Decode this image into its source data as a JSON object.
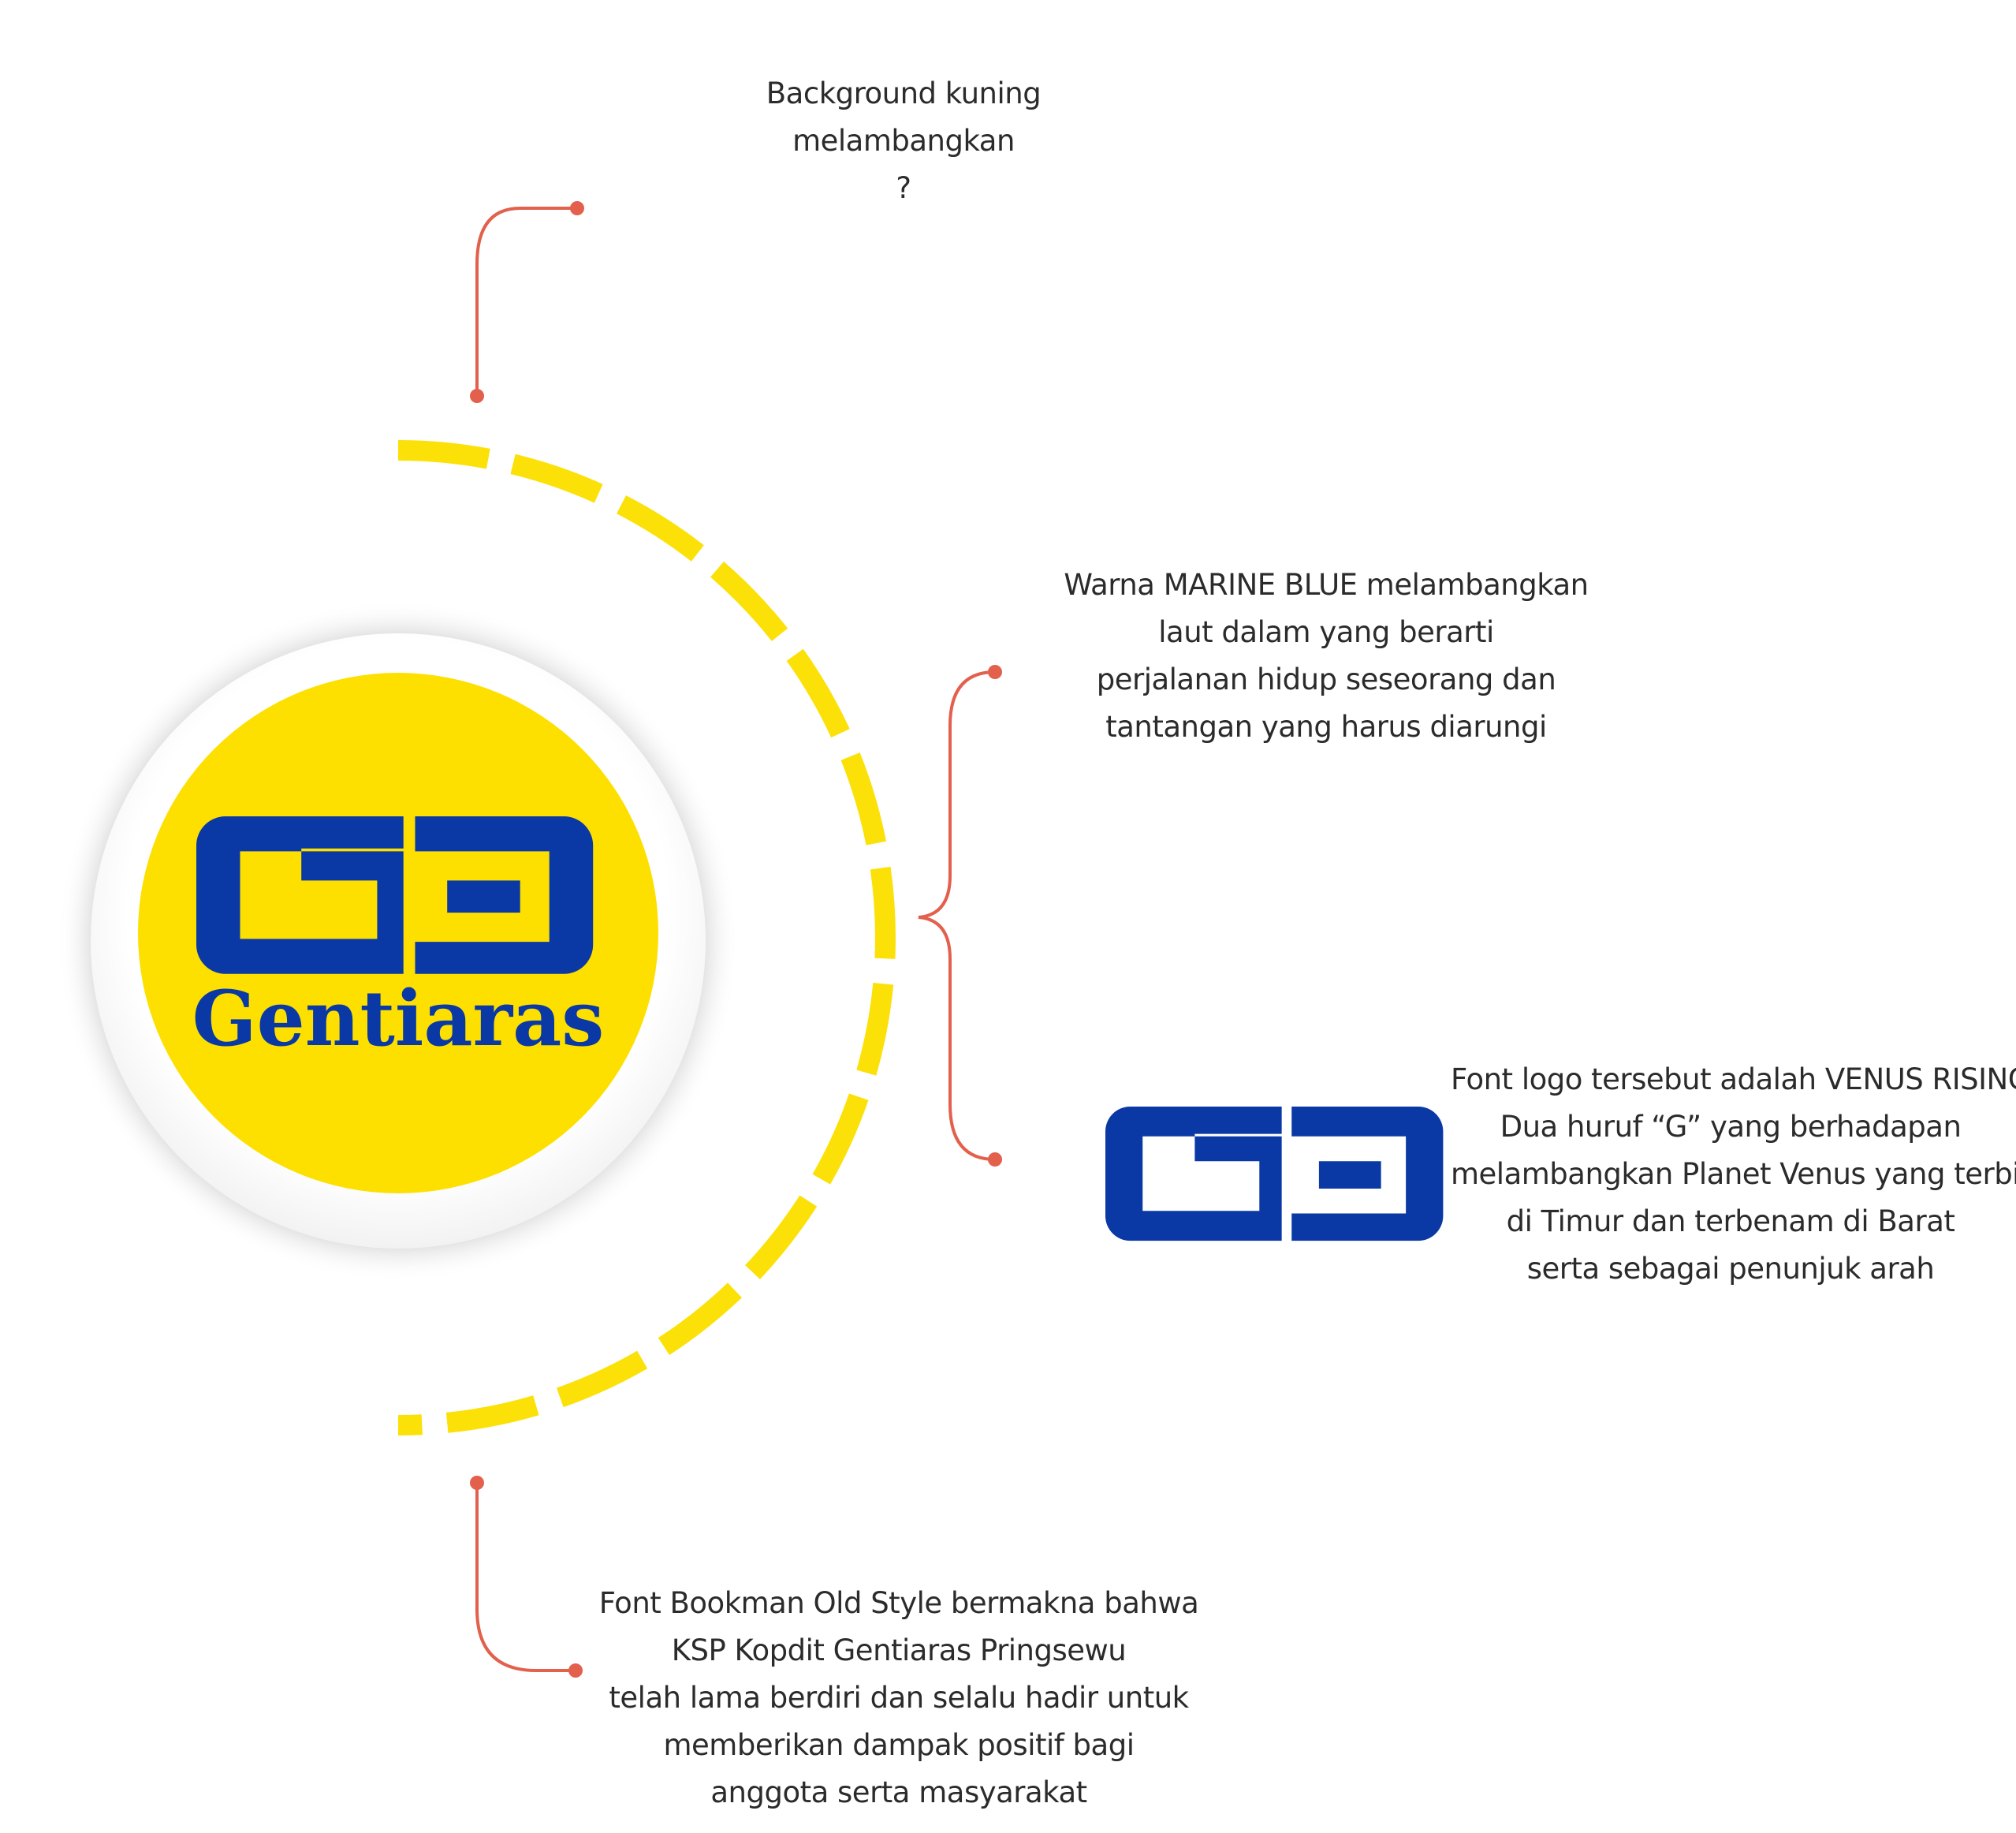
{
  "logo": {
    "brand_name": "Gentiaras",
    "monogram": "GG",
    "colors": {
      "marine_blue": "#0a39a6",
      "yellow": "#fde000",
      "dash_yellow": "#fbe108",
      "connector": "#e2604c",
      "ring": "#ffffff",
      "shadow": "#d9d9d9"
    }
  },
  "notes": {
    "background": {
      "lines": [
        "Background kuning",
        "melambangkan",
        "?"
      ]
    },
    "color": {
      "lines": [
        "Warna MARINE BLUE melambangkan",
        "laut dalam yang berarti",
        "perjalanan hidup seseorang dan",
        "tantangan yang harus diarungi"
      ]
    },
    "font_logo": {
      "lines": [
        "Font logo tersebut adalah VENUS RISING.",
        "Dua huruf “G” yang berhadapan",
        "melambangkan Planet Venus yang terbit",
        "di Timur  dan terbenam di Barat",
        "serta sebagai penunjuk arah"
      ]
    },
    "font_text": {
      "lines": [
        "Font Bookman Old Style bermakna bahwa",
        "KSP Kopdit Gentiaras Pringsewu",
        "telah lama berdiri dan selalu hadir untuk",
        "memberikan dampak positif bagi",
        "anggota serta masyarakat"
      ]
    }
  }
}
